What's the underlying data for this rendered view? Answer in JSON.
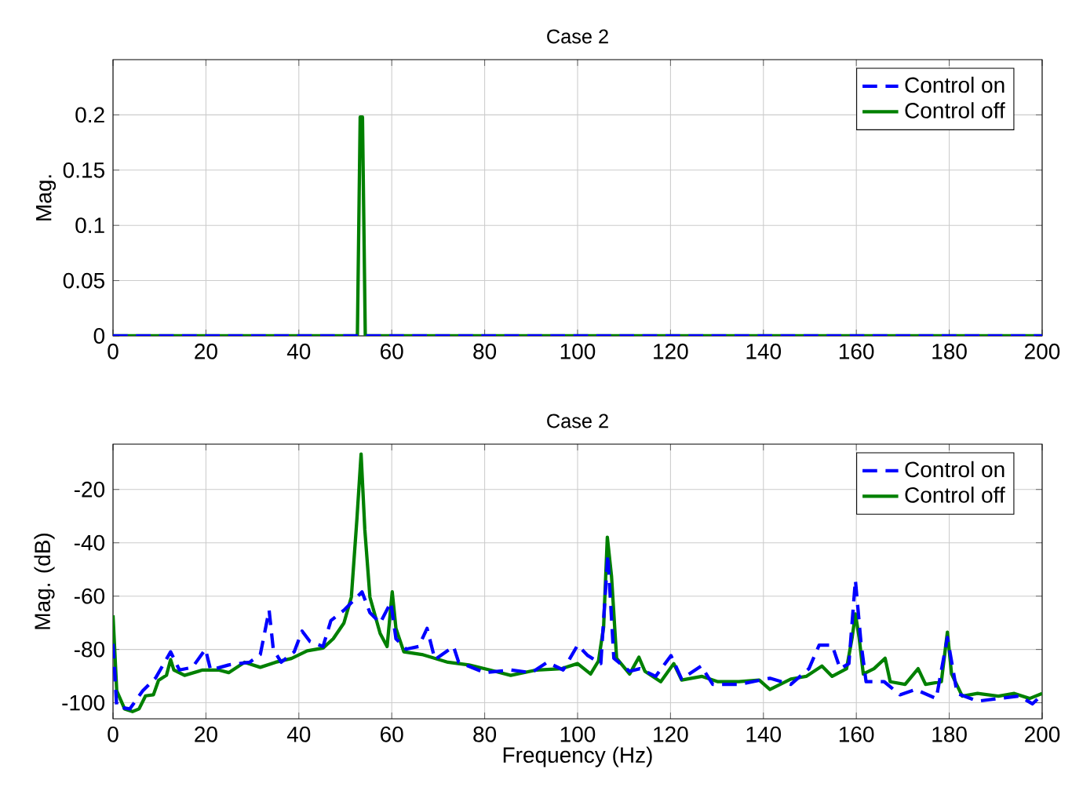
{
  "chart_data": [
    {
      "type": "line",
      "title": "Case 2",
      "ylabel": "Mag.",
      "xlim": [
        0,
        200
      ],
      "ylim": [
        0,
        0.25
      ],
      "xticks": [
        0,
        20,
        40,
        60,
        80,
        100,
        120,
        140,
        160,
        180,
        200
      ],
      "yticks": [
        0,
        0.05,
        0.1,
        0.15,
        0.2
      ],
      "grid": true,
      "legend": "top right",
      "series": [
        {
          "name": "Control on",
          "color": "#0000ff",
          "line_style": "dashed",
          "x": [
            0,
            200
          ],
          "values": [
            0,
            0
          ]
        },
        {
          "name": "Control off",
          "color": "#008000",
          "line_style": "solid",
          "x": [
            0,
            52.6,
            53.2,
            53.7,
            54.3,
            200
          ],
          "values": [
            0,
            0,
            0.198,
            0.198,
            0,
            0
          ]
        }
      ]
    },
    {
      "type": "line",
      "title": "Case 2",
      "xlabel": "Frequency (Hz)",
      "ylabel": "Mag. (dB)",
      "xlim": [
        0,
        200
      ],
      "ylim": [
        -106,
        -3
      ],
      "xticks": [
        0,
        20,
        40,
        60,
        80,
        100,
        120,
        140,
        160,
        180,
        200
      ],
      "yticks": [
        -100,
        -80,
        -60,
        -40,
        -20
      ],
      "grid": true,
      "legend": "top right",
      "series": [
        {
          "name": "Control on",
          "color": "#0000ff",
          "line_style": "dashed",
          "x": [
            0,
            0.8,
            3.6,
            6.4,
            9.2,
            12.4,
            14.3,
            17.1,
            19.9,
            21,
            24.9,
            29.4,
            31.7,
            33.6,
            34.5,
            36.2,
            39,
            40.7,
            42.4,
            45.2,
            46.9,
            49.7,
            51.9,
            53.6,
            55.3,
            57.5,
            59.8,
            60.9,
            63.1,
            65.8,
            67.6,
            69.3,
            73.3,
            74.4,
            80,
            85.6,
            90.1,
            93.5,
            96.9,
            100,
            102.2,
            105,
            106.5,
            107.8,
            111.2,
            113.4,
            116.8,
            120.1,
            122.4,
            126.6,
            129.1,
            134.7,
            141.4,
            145.9,
            149.8,
            152,
            154.8,
            156.5,
            158.4,
            159.8,
            161,
            162.1,
            166,
            169.4,
            172.7,
            177.2,
            179.6,
            181.7,
            186.1,
            190.6,
            195.1,
            197.9,
            200
          ],
          "values": [
            -77.9,
            -101.4,
            -102.3,
            -95.5,
            -90.6,
            -80.9,
            -87.7,
            -86.7,
            -79.9,
            -87.7,
            -85.8,
            -84.8,
            -81.9,
            -65.3,
            -79.9,
            -84.8,
            -80.9,
            -73.1,
            -77,
            -78.9,
            -69.2,
            -65.3,
            -61.4,
            -58.4,
            -66.2,
            -70.1,
            -62.3,
            -76,
            -79.9,
            -78.9,
            -72.1,
            -83.8,
            -78.9,
            -84.8,
            -88.7,
            -87.7,
            -88.7,
            -84.8,
            -87.7,
            -78.4,
            -82.3,
            -85.3,
            -44.4,
            -83.3,
            -88.2,
            -87.2,
            -90.1,
            -82.3,
            -91.1,
            -86.2,
            -93.1,
            -93.1,
            -90.8,
            -93.1,
            -87.2,
            -78.4,
            -78.4,
            -87.2,
            -85.3,
            -54,
            -77.5,
            -92.1,
            -92.1,
            -97,
            -95,
            -98.4,
            -75.5,
            -96.5,
            -99.4,
            -98.4,
            -97.5,
            -100.4,
            -97
          ]
        },
        {
          "name": "Control off",
          "color": "#008000",
          "line_style": "solid",
          "x": [
            0,
            0.8,
            2.5,
            4.2,
            5.6,
            7,
            8.7,
            9.8,
            11.5,
            12.4,
            13.1,
            15.4,
            19.3,
            22.7,
            24.9,
            28.3,
            31.7,
            35,
            38.4,
            41.8,
            45.2,
            47.4,
            49.7,
            51.3,
            52.5,
            53.4,
            54.2,
            55.3,
            57.5,
            59,
            60.1,
            60.9,
            62.6,
            66.5,
            72.1,
            76.6,
            81.1,
            85.6,
            91.2,
            96.6,
            100,
            102.8,
            104.5,
            105.6,
            106.4,
            107.3,
            108.4,
            111.2,
            113.2,
            114.5,
            117.9,
            120.7,
            122.4,
            126.8,
            130.2,
            134.7,
            139.1,
            141.4,
            145.9,
            149.2,
            152.6,
            154.8,
            157.9,
            159.1,
            159.8,
            160.6,
            161.5,
            163.8,
            166.2,
            167.3,
            170.5,
            173.3,
            174.9,
            178.3,
            179.6,
            180.5,
            182.8,
            186.1,
            190.6,
            194,
            197.3,
            200
          ],
          "values": [
            -67.2,
            -95.5,
            -102.3,
            -103.3,
            -102.3,
            -97.4,
            -97,
            -91.6,
            -89.7,
            -83.8,
            -87.7,
            -89.7,
            -87.7,
            -87.7,
            -88.7,
            -84.8,
            -86.7,
            -84.8,
            -83.4,
            -80.5,
            -79.5,
            -76,
            -70.1,
            -60.4,
            -31.1,
            -6.7,
            -35,
            -60.4,
            -74,
            -78.9,
            -58.4,
            -72.1,
            -80.9,
            -81.9,
            -84.8,
            -85.8,
            -87.7,
            -89.7,
            -87.7,
            -87.2,
            -85.3,
            -89.2,
            -84.3,
            -71.6,
            -37.9,
            -52.5,
            -83.3,
            -89.2,
            -82.9,
            -88.2,
            -92.1,
            -85.3,
            -91.5,
            -90.1,
            -92.1,
            -92.1,
            -91.5,
            -95,
            -91.1,
            -90.1,
            -86.2,
            -90.1,
            -87.2,
            -75.5,
            -66.7,
            -75.5,
            -89.2,
            -87.2,
            -83.3,
            -92.1,
            -93.1,
            -87.2,
            -93.1,
            -92.1,
            -73.5,
            -89.2,
            -97.5,
            -96.5,
            -97.5,
            -96.5,
            -98.4,
            -96.5
          ]
        }
      ]
    }
  ]
}
